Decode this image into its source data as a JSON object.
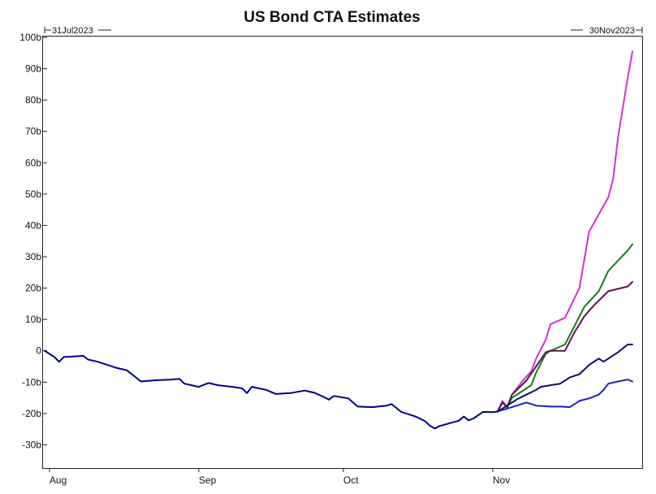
{
  "chart_data": {
    "type": "line",
    "title": "US Bond CTA Estimates",
    "range_start_label": "31Jul2023",
    "range_end_label": "30Nov2023",
    "xlabel": "",
    "ylabel": "",
    "x_domain": [
      "2023-07-31",
      "2023-11-30"
    ],
    "ylim": [
      -33,
      100
    ],
    "y_ticks": [
      100,
      90,
      80,
      70,
      60,
      50,
      40,
      30,
      20,
      10,
      0,
      -10,
      -20,
      -30
    ],
    "y_tick_labels": [
      "100b",
      "90b",
      "80b",
      "70b",
      "60b",
      "50b",
      "40b",
      "30b",
      "20b",
      "10b",
      "0",
      "-10b",
      "-20b",
      "-30b"
    ],
    "x_ticks": [
      {
        "label": "Aug",
        "date": "2023-08-01"
      },
      {
        "label": "Sep",
        "date": "2023-09-01"
      },
      {
        "label": "Oct",
        "date": "2023-10-01"
      },
      {
        "label": "Nov",
        "date": "2023-11-01"
      }
    ],
    "grid": false,
    "legend": "none",
    "base_series": {
      "color": "#00008b",
      "points": [
        [
          "2023-07-31",
          0
        ],
        [
          "2023-08-01",
          -1
        ],
        [
          "2023-08-02",
          -2
        ],
        [
          "2023-08-03",
          -3.5
        ],
        [
          "2023-08-04",
          -2
        ],
        [
          "2023-08-06",
          -1.8
        ],
        [
          "2023-08-08",
          -1.6
        ],
        [
          "2023-08-09",
          -2.8
        ],
        [
          "2023-08-11",
          -3.5
        ],
        [
          "2023-08-13",
          -4.5
        ],
        [
          "2023-08-15",
          -5.5
        ],
        [
          "2023-08-17",
          -6.2
        ],
        [
          "2023-08-20",
          -9.8
        ],
        [
          "2023-08-23",
          -9.4
        ],
        [
          "2023-08-26",
          -9.2
        ],
        [
          "2023-08-28",
          -9
        ],
        [
          "2023-08-29",
          -10.5
        ],
        [
          "2023-09-01",
          -11.5
        ],
        [
          "2023-09-03",
          -10.3
        ],
        [
          "2023-09-05",
          -11
        ],
        [
          "2023-09-08",
          -11.5
        ],
        [
          "2023-09-10",
          -12
        ],
        [
          "2023-09-11",
          -13.5
        ],
        [
          "2023-09-12",
          -11.5
        ],
        [
          "2023-09-15",
          -12.5
        ],
        [
          "2023-09-17",
          -13.8
        ],
        [
          "2023-09-20",
          -13.5
        ],
        [
          "2023-09-23",
          -12.7
        ],
        [
          "2023-09-25",
          -13.4
        ],
        [
          "2023-09-27",
          -14.8
        ],
        [
          "2023-09-28",
          -15.6
        ],
        [
          "2023-09-29",
          -14.4
        ],
        [
          "2023-10-02",
          -15.2
        ],
        [
          "2023-10-04",
          -17.8
        ],
        [
          "2023-10-07",
          -18
        ],
        [
          "2023-10-10",
          -17.5
        ],
        [
          "2023-10-11",
          -17
        ],
        [
          "2023-10-13",
          -19.5
        ],
        [
          "2023-10-16",
          -21
        ],
        [
          "2023-10-18",
          -22.5
        ],
        [
          "2023-10-19",
          -24
        ],
        [
          "2023-10-20",
          -24.8
        ],
        [
          "2023-10-21",
          -24
        ],
        [
          "2023-10-25",
          -22.3
        ],
        [
          "2023-10-26",
          -21
        ],
        [
          "2023-10-27",
          -22.2
        ],
        [
          "2023-10-28",
          -21.6
        ],
        [
          "2023-10-30",
          -19.5
        ],
        [
          "2023-11-01",
          -19.6
        ],
        [
          "2023-11-02",
          -19.4
        ]
      ]
    },
    "series": [
      {
        "color": "#cc33cc",
        "points": [
          [
            "2023-11-02",
            -19.4
          ],
          [
            "2023-11-03",
            -16
          ],
          [
            "2023-11-04",
            -18
          ],
          [
            "2023-11-05",
            -14
          ],
          [
            "2023-11-07",
            -10
          ],
          [
            "2023-11-09",
            -6.5
          ],
          [
            "2023-11-10",
            -2.5
          ],
          [
            "2023-11-12",
            3.5
          ],
          [
            "2023-11-13",
            8.5
          ],
          [
            "2023-11-16",
            10.5
          ],
          [
            "2023-11-19",
            20
          ],
          [
            "2023-11-21",
            38
          ],
          [
            "2023-11-25",
            49
          ],
          [
            "2023-11-26",
            55
          ],
          [
            "2023-11-27",
            68
          ],
          [
            "2023-11-29",
            87
          ],
          [
            "2023-11-30",
            95.5
          ]
        ]
      },
      {
        "color": "#1a7a1a",
        "points": [
          [
            "2023-11-02",
            -19.4
          ],
          [
            "2023-11-03",
            -16.5
          ],
          [
            "2023-11-04",
            -18
          ],
          [
            "2023-11-05",
            -15
          ],
          [
            "2023-11-07",
            -13
          ],
          [
            "2023-11-09",
            -11
          ],
          [
            "2023-11-10",
            -7
          ],
          [
            "2023-11-12",
            -1
          ],
          [
            "2023-11-13",
            0
          ],
          [
            "2023-11-16",
            2
          ],
          [
            "2023-11-18",
            8
          ],
          [
            "2023-11-20",
            14
          ],
          [
            "2023-11-23",
            19
          ],
          [
            "2023-11-25",
            25.5
          ],
          [
            "2023-11-29",
            32
          ],
          [
            "2023-11-30",
            34
          ]
        ]
      },
      {
        "color": "#5c1452",
        "points": [
          [
            "2023-11-02",
            -19.4
          ],
          [
            "2023-11-03",
            -16.5
          ],
          [
            "2023-11-04",
            -18
          ],
          [
            "2023-11-05",
            -14
          ],
          [
            "2023-11-08",
            -9.5
          ],
          [
            "2023-11-10",
            -5
          ],
          [
            "2023-11-12",
            -0.5
          ],
          [
            "2023-11-13",
            0
          ],
          [
            "2023-11-16",
            0
          ],
          [
            "2023-11-18",
            6
          ],
          [
            "2023-11-20",
            11
          ],
          [
            "2023-11-22",
            14.5
          ],
          [
            "2023-11-25",
            19
          ],
          [
            "2023-11-29",
            20.5
          ],
          [
            "2023-11-30",
            22
          ]
        ]
      },
      {
        "color": "#101060",
        "points": [
          [
            "2023-11-02",
            -19.4
          ],
          [
            "2023-11-04",
            -17.5
          ],
          [
            "2023-11-06",
            -15.5
          ],
          [
            "2023-11-08",
            -14
          ],
          [
            "2023-11-10",
            -12.5
          ],
          [
            "2023-11-11",
            -11.5
          ],
          [
            "2023-11-13",
            -11
          ],
          [
            "2023-11-15",
            -10.5
          ],
          [
            "2023-11-17",
            -8.5
          ],
          [
            "2023-11-19",
            -7.5
          ],
          [
            "2023-11-21",
            -4.5
          ],
          [
            "2023-11-23",
            -2.5
          ],
          [
            "2023-11-24",
            -3.5
          ],
          [
            "2023-11-25",
            -2.5
          ],
          [
            "2023-11-27",
            -0.5
          ],
          [
            "2023-11-29",
            2
          ],
          [
            "2023-11-30",
            2
          ]
        ]
      },
      {
        "color": "#1e1ec8",
        "points": [
          [
            "2023-11-02",
            -19.4
          ],
          [
            "2023-11-05",
            -18
          ],
          [
            "2023-11-08",
            -16.5
          ],
          [
            "2023-11-10",
            -17.5
          ],
          [
            "2023-11-13",
            -17.8
          ],
          [
            "2023-11-15",
            -17.8
          ],
          [
            "2023-11-17",
            -18
          ],
          [
            "2023-11-19",
            -16
          ],
          [
            "2023-11-21",
            -15.2
          ],
          [
            "2023-11-23",
            -14
          ],
          [
            "2023-11-24",
            -12.5
          ],
          [
            "2023-11-25",
            -10.5
          ],
          [
            "2023-11-27",
            -9.8
          ],
          [
            "2023-11-29",
            -9.2
          ],
          [
            "2023-11-30",
            -9.8
          ]
        ]
      }
    ]
  }
}
